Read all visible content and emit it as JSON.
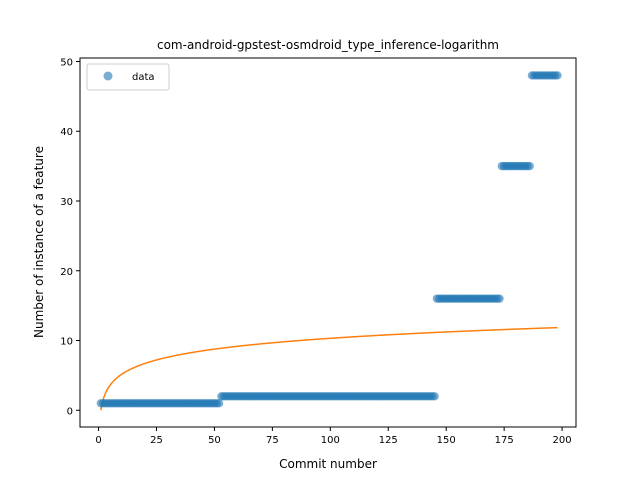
{
  "chart_data": {
    "type": "scatter",
    "title": "com-android-gpstest-osmdroid_type_inference-logarithm",
    "xlabel": "Commit number",
    "ylabel": "Number of instance of a feature",
    "xlim": [
      -8,
      206
    ],
    "ylim": [
      -2.4,
      50.5
    ],
    "xticks": [
      0,
      25,
      50,
      75,
      100,
      125,
      150,
      175,
      200
    ],
    "yticks": [
      0,
      10,
      20,
      30,
      40,
      50
    ],
    "grid": false,
    "legend": {
      "placement": "upper-left",
      "entries": [
        "data"
      ]
    },
    "colors": {
      "data": "#1f77b4",
      "fit": "#ff7f0e"
    },
    "series": [
      {
        "name": "data",
        "kind": "scatter",
        "segments": [
          {
            "x_start": 1,
            "x_end": 52,
            "y": 1
          },
          {
            "x_start": 53,
            "x_end": 145,
            "y": 2
          },
          {
            "x_start": 146,
            "x_end": 173,
            "y": 16
          },
          {
            "x_start": 174,
            "x_end": 186,
            "y": 35
          },
          {
            "x_start": 187,
            "x_end": 198,
            "y": 48
          }
        ]
      },
      {
        "kind": "line",
        "function": "logarithm",
        "a": 2.24,
        "b": 0.0,
        "x_start": 1,
        "x_end": 198
      }
    ]
  }
}
